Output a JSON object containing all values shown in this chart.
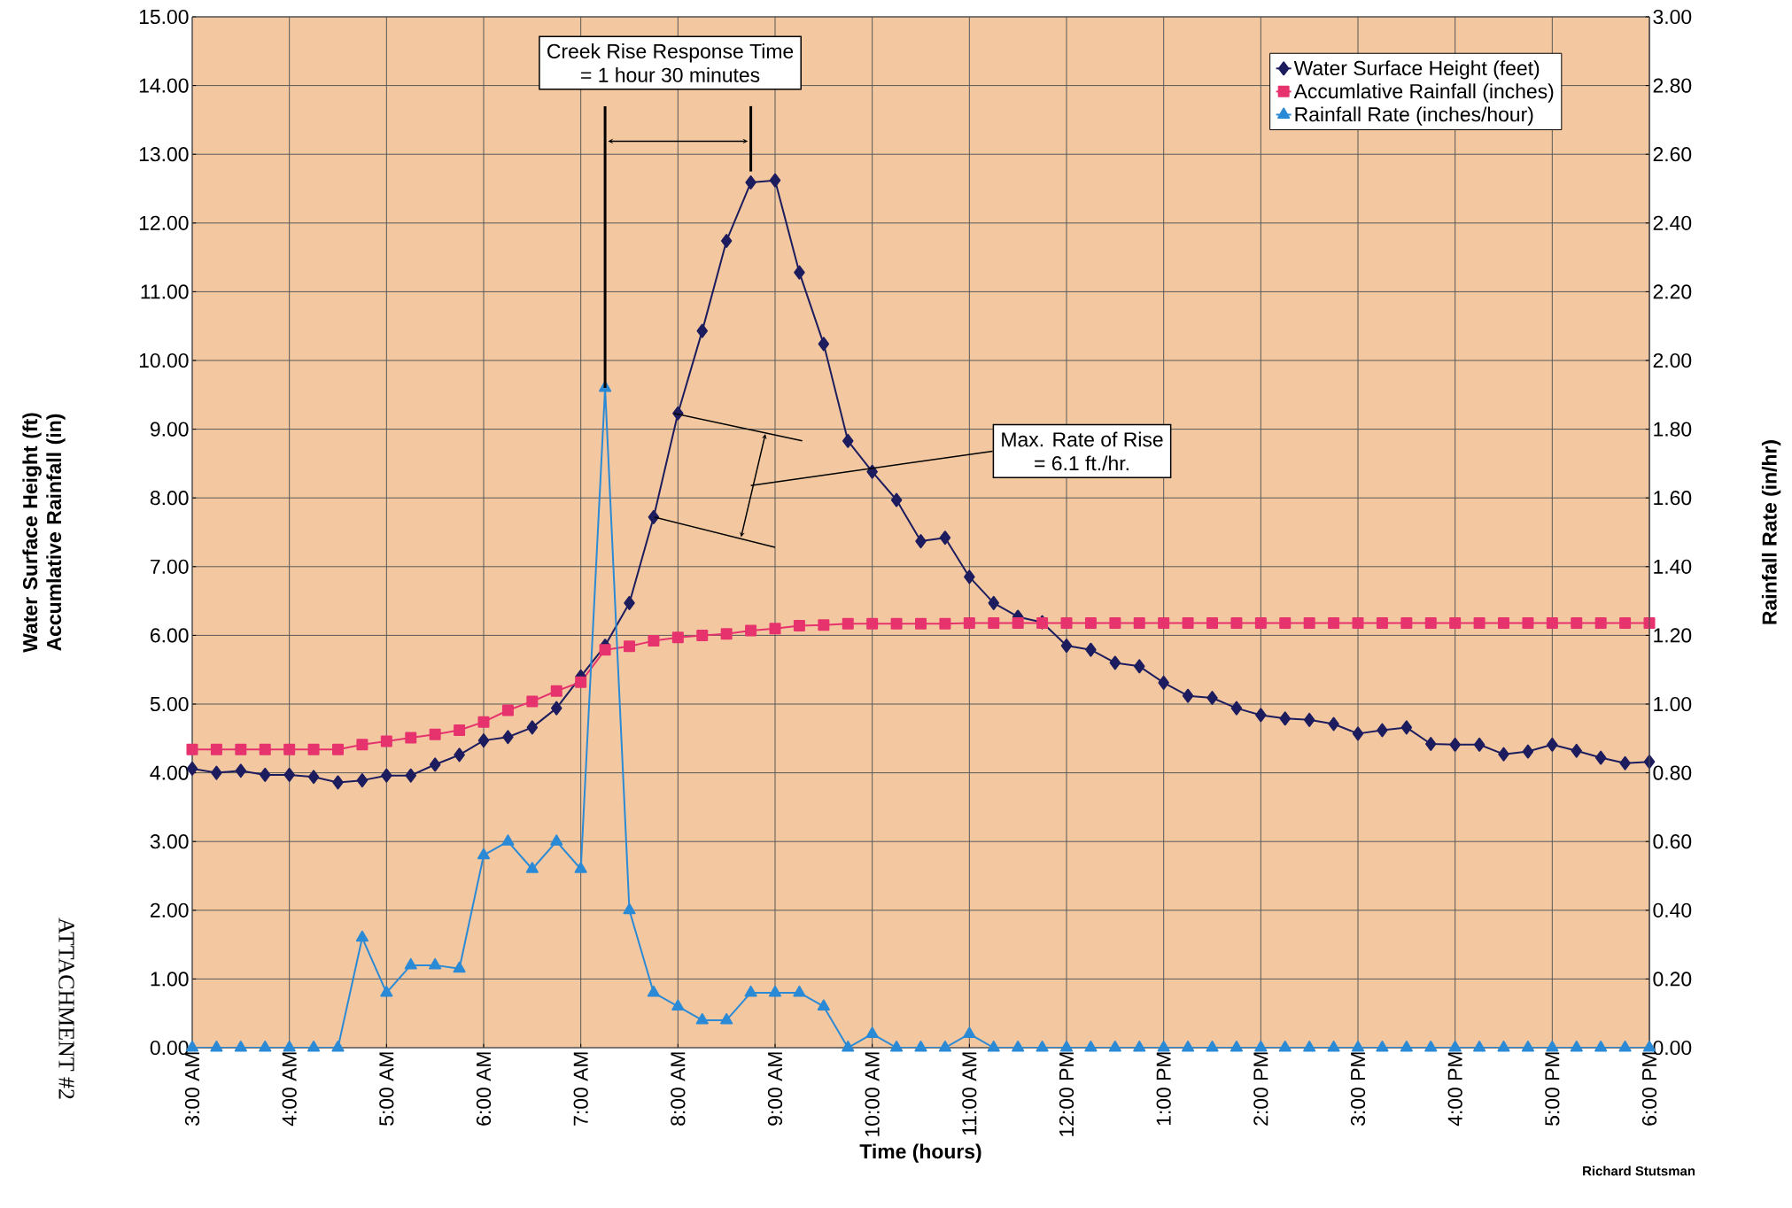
{
  "chart_data": {
    "type": "line",
    "xlabel": "Time (hours)",
    "ylabel": "Water Surface Height (ft) Accumlative Rainfall (in)",
    "y2label": "Rainfall Rate (in/hr)",
    "annotations": [
      "Creek Rise Response Time",
      {
        "text": "= 1 hour 30 minutes",
        "x": 7.25,
        "y": 9.6
      },
      "Max. Rate of Rise",
      "= 6.1 ft./hr.",
      "Richard Stutsman",
      "ATTACHMENT #2"
    ],
    "x": [
      3,
      3.25,
      3.5,
      3.75,
      4,
      4.25,
      4.5,
      4.75,
      5,
      5.25,
      5.5,
      5.75,
      6,
      6.25,
      6.5,
      6.75,
      7,
      7.25,
      7.5,
      7.75,
      8,
      8.25,
      8.5,
      8.75,
      9,
      9.25,
      9.5,
      9.75,
      10,
      10.25,
      10.5,
      10.75,
      11,
      11.25,
      11.5,
      11.75,
      12,
      12.25,
      12.5,
      12.75,
      13,
      13.25,
      13.5,
      13.75,
      14,
      14.25,
      14.5,
      14.75,
      15,
      15.25,
      15.5,
      15.75,
      16,
      16.25,
      16.5,
      16.75,
      17,
      17.25,
      17.5,
      17.75,
      18
    ],
    "xlim": [
      3,
      18
    ],
    "xticks": [
      {
        "value": 3,
        "label": "3:00 AM"
      },
      {
        "value": 4,
        "label": "4:00 AM"
      },
      {
        "value": 5,
        "label": "5:00 AM"
      },
      {
        "value": 6,
        "label": "6:00 AM"
      },
      {
        "value": 7,
        "label": "7:00 AM"
      },
      {
        "value": 8,
        "label": "8:00 AM"
      },
      {
        "value": 9,
        "label": "9:00 AM"
      },
      {
        "value": 10,
        "label": "10:00 AM"
      },
      {
        "value": 11,
        "label": "11:00 AM"
      },
      {
        "value": 12,
        "label": "12:00 PM"
      },
      {
        "value": 13,
        "label": "1:00 PM"
      },
      {
        "value": 14,
        "label": "2:00 PM"
      },
      {
        "value": 15,
        "label": "3:00 PM"
      },
      {
        "value": 16,
        "label": "4:00 PM"
      },
      {
        "value": 17,
        "label": "5:00 PM"
      },
      {
        "value": 18,
        "label": "6:00 PM"
      }
    ],
    "ylim": [
      0,
      15
    ],
    "yticks": [
      {
        "value": 0,
        "label": "0.00"
      },
      {
        "value": 1,
        "label": "1.00"
      },
      {
        "value": 2,
        "label": "2.00"
      },
      {
        "value": 3,
        "label": "3.00"
      },
      {
        "value": 4,
        "label": "4.00"
      },
      {
        "value": 5,
        "label": "5.00"
      },
      {
        "value": 6,
        "label": "6.00"
      },
      {
        "value": 7,
        "label": "7.00"
      },
      {
        "value": 8,
        "label": "8.00"
      },
      {
        "value": 9,
        "label": "9.00"
      },
      {
        "value": 10,
        "label": "10.00"
      },
      {
        "value": 11,
        "label": "11.00"
      },
      {
        "value": 12,
        "label": "12.00"
      },
      {
        "value": 13,
        "label": "13.00"
      },
      {
        "value": 14,
        "label": "14.00"
      },
      {
        "value": 15,
        "label": "15.00"
      }
    ],
    "y2lim": [
      0,
      3
    ],
    "y2ticks": [
      {
        "value": 0,
        "label": "0.00"
      },
      {
        "value": 0.2,
        "label": "0.20"
      },
      {
        "value": 0.4,
        "label": "0.40"
      },
      {
        "value": 0.6,
        "label": "0.60"
      },
      {
        "value": 0.8,
        "label": "0.80"
      },
      {
        "value": 1,
        "label": "1.00"
      },
      {
        "value": 1.2,
        "label": "1.20"
      },
      {
        "value": 1.4,
        "label": "1.40"
      },
      {
        "value": 1.6,
        "label": "1.60"
      },
      {
        "value": 1.8,
        "label": "1.80"
      },
      {
        "value": 2,
        "label": "2.00"
      },
      {
        "value": 2.2,
        "label": "2.20"
      },
      {
        "value": 2.4,
        "label": "2.40"
      },
      {
        "value": 2.6,
        "label": "2.60"
      },
      {
        "value": 2.8,
        "label": "2.80"
      },
      {
        "value": 3,
        "label": "3.00"
      }
    ],
    "grid": true,
    "legend": "top right",
    "series": [
      {
        "name": "Water Surface Height (feet)",
        "color": "#1c1c5e",
        "marker": "diamond",
        "values": [
          4.06,
          4.0,
          4.03,
          3.97,
          3.97,
          3.94,
          3.86,
          3.89,
          3.96,
          3.96,
          4.12,
          4.26,
          4.47,
          4.52,
          4.66,
          4.94,
          5.4,
          5.85,
          6.47,
          7.72,
          9.23,
          10.43,
          11.74,
          12.59,
          12.62,
          11.28,
          10.24,
          8.83,
          8.38,
          7.97,
          7.37,
          7.42,
          6.85,
          6.47,
          6.27,
          6.19,
          5.85,
          5.79,
          5.6,
          5.55,
          5.31,
          5.12,
          5.09,
          4.94,
          4.84,
          4.79,
          4.77,
          4.71,
          4.57,
          4.62,
          4.66,
          4.42,
          4.41,
          4.41,
          4.27,
          4.31,
          4.41,
          4.32,
          4.22,
          4.14,
          4.16
        ]
      },
      {
        "name": "Accumlative Rainfall (inches)",
        "color": "#e6336e",
        "marker": "square",
        "values": [
          4.34,
          4.34,
          4.34,
          4.34,
          4.34,
          4.34,
          4.34,
          4.41,
          4.46,
          4.51,
          4.56,
          4.62,
          4.74,
          4.91,
          5.04,
          5.19,
          5.32,
          5.79,
          5.84,
          5.92,
          5.97,
          6.0,
          6.02,
          6.07,
          6.1,
          6.14,
          6.15,
          6.17,
          6.17,
          6.17,
          6.17,
          6.17,
          6.18,
          6.18,
          6.18,
          6.18,
          6.18,
          6.18,
          6.18,
          6.18,
          6.18,
          6.18,
          6.18,
          6.18,
          6.18,
          6.18,
          6.18,
          6.18,
          6.18,
          6.18,
          6.18,
          6.18,
          6.18,
          6.18,
          6.18,
          6.18,
          6.18,
          6.18,
          6.18,
          6.18,
          6.18
        ]
      },
      {
        "name": "Rainfall Rate (inches/hour)",
        "color": "#2b8ad6",
        "marker": "triangle",
        "axis": "y2",
        "values": [
          0,
          0,
          0,
          0,
          0,
          0,
          0,
          0.32,
          0.16,
          0.24,
          0.24,
          0.23,
          0.56,
          0.6,
          0.52,
          0.6,
          0.52,
          1.92,
          0.4,
          0.16,
          0.12,
          0.08,
          0.08,
          0.16,
          0.16,
          0.16,
          0.12,
          0,
          0.04,
          0,
          0,
          0,
          0.04,
          0,
          0,
          0,
          0,
          0,
          0,
          0,
          0,
          0,
          0,
          0,
          0,
          0,
          0,
          0,
          0,
          0,
          0,
          0,
          0,
          0,
          0,
          0,
          0,
          0,
          0,
          0,
          0
        ]
      }
    ]
  }
}
